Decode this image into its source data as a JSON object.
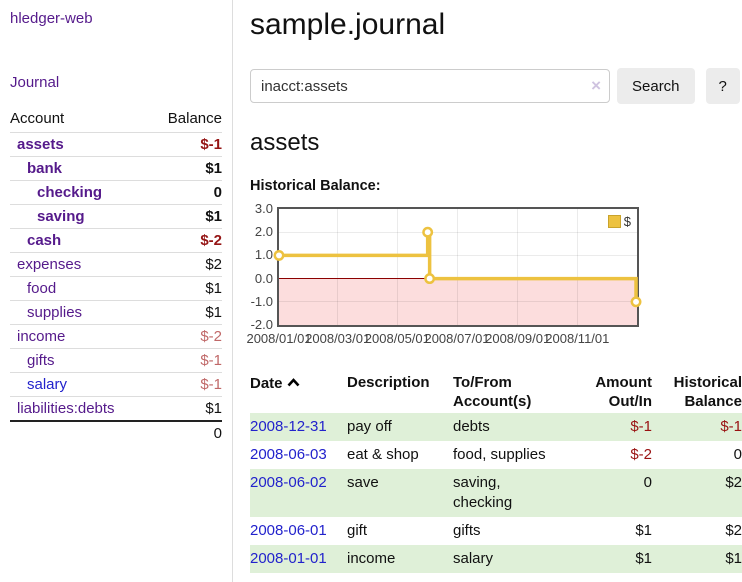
{
  "app": {
    "brand": "hledger-web",
    "nav": {
      "journal": "Journal"
    }
  },
  "sidebar": {
    "headers": {
      "account": "Account",
      "balance": "Balance"
    },
    "accounts": [
      {
        "name": "assets",
        "indent": 0,
        "bold": true,
        "color": "purple",
        "balance": "$-1",
        "balance_style": "neg-strong"
      },
      {
        "name": "bank",
        "indent": 1,
        "bold": true,
        "color": "purple",
        "balance": "$1",
        "balance_style": "strong"
      },
      {
        "name": "checking",
        "indent": 2,
        "bold": true,
        "color": "purple",
        "balance": "0",
        "balance_style": "strong"
      },
      {
        "name": "saving",
        "indent": 2,
        "bold": true,
        "color": "purple",
        "balance": "$1",
        "balance_style": "strong"
      },
      {
        "name": "cash",
        "indent": 1,
        "bold": true,
        "color": "purple",
        "balance": "$-2",
        "balance_style": "neg-strong"
      },
      {
        "name": "expenses",
        "indent": 0,
        "bold": false,
        "color": "purple",
        "balance": "$2",
        "balance_style": "plain"
      },
      {
        "name": "food",
        "indent": 1,
        "bold": false,
        "color": "purple",
        "balance": "$1",
        "balance_style": "plain"
      },
      {
        "name": "supplies",
        "indent": 1,
        "bold": false,
        "color": "purple",
        "balance": "$1",
        "balance_style": "plain"
      },
      {
        "name": "income",
        "indent": 0,
        "bold": false,
        "color": "purple",
        "balance": "$-2",
        "balance_style": "neg-soft"
      },
      {
        "name": "gifts",
        "indent": 1,
        "bold": false,
        "color": "purple",
        "balance": "$-1",
        "balance_style": "neg-soft"
      },
      {
        "name": "salary",
        "indent": 1,
        "bold": false,
        "color": "blue",
        "balance": "$-1",
        "balance_style": "neg-soft"
      },
      {
        "name": "liabilities:debts",
        "indent": 0,
        "bold": false,
        "color": "purple",
        "balance": "$1",
        "balance_style": "plain"
      }
    ],
    "total": "0"
  },
  "main": {
    "title": "sample.journal",
    "search": {
      "value": "inacct:assets",
      "clear_icon": "×",
      "search_button": "Search",
      "help_button": "?"
    },
    "account_heading": "assets",
    "section_heading": "Historical Balance:"
  },
  "chart_data": {
    "type": "line",
    "step": true,
    "title": "Historical Balance",
    "series": [
      {
        "name": "$",
        "color": "#edc240",
        "points": [
          [
            "2008-01-01",
            1
          ],
          [
            "2008-06-01",
            2
          ],
          [
            "2008-06-03",
            0
          ],
          [
            "2008-12-31",
            -1
          ]
        ]
      }
    ],
    "x_range": [
      "2008-01-01",
      "2009-01-01"
    ],
    "ylim": [
      -2,
      3
    ],
    "y_ticks": [
      3,
      2,
      1,
      0,
      -1,
      -2
    ],
    "y_tick_labels": [
      "3.0",
      "2.0",
      "1.0",
      "0.0",
      "-1.0",
      "-2.0"
    ],
    "x_tick_labels": [
      "2008/01/01",
      "2008/03/01",
      "2008/05/01",
      "2008/07/01",
      "2008/09/01",
      "2008/11/01"
    ],
    "grid": true,
    "legend": {
      "label": "$",
      "position": "top-right"
    },
    "colors": {
      "line": "#edc240",
      "negative_fill": "#fcdddd",
      "zero_line": "#8b0000",
      "border": "#555555"
    }
  },
  "register": {
    "headers": {
      "date": "Date",
      "description": "Description",
      "account": "To/From Account(s)",
      "amount": "Amount Out/In",
      "balance": "Historical Balance"
    },
    "sort_icon": "chevron-up",
    "rows": [
      {
        "date": "2008-12-31",
        "description": "pay off",
        "accounts": "debts",
        "amount": "$-1",
        "amount_negative": true,
        "balance": "$-1",
        "balance_negative": true,
        "shaded": true
      },
      {
        "date": "2008-06-03",
        "description": "eat & shop",
        "accounts": "food, supplies",
        "amount": "$-2",
        "amount_negative": true,
        "balance": "0",
        "balance_negative": false,
        "shaded": false
      },
      {
        "date": "2008-06-02",
        "description": "save",
        "accounts": "saving,\nchecking",
        "amount": "0",
        "amount_negative": false,
        "balance": "$2",
        "balance_negative": false,
        "shaded": true
      },
      {
        "date": "2008-06-01",
        "description": "gift",
        "accounts": "gifts",
        "amount": "$1",
        "amount_negative": false,
        "balance": "$2",
        "balance_negative": false,
        "shaded": false
      },
      {
        "date": "2008-01-01",
        "description": "income",
        "accounts": "salary",
        "amount": "$1",
        "amount_negative": false,
        "balance": "$1",
        "balance_negative": false,
        "shaded": true
      }
    ]
  }
}
